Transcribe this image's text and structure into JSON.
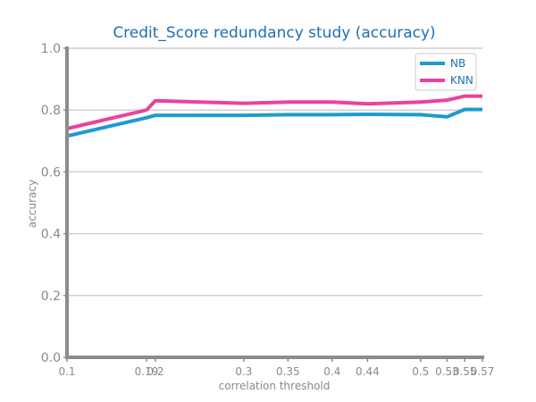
{
  "chart_data": {
    "type": "line",
    "title": "Credit_Score redundancy study (accuracy)",
    "xlabel": "correlation threshold",
    "ylabel": "accuracy",
    "xlim": [
      0.1,
      0.57
    ],
    "ylim": [
      0.0,
      1.0
    ],
    "grid": true,
    "legend_position": "top-right",
    "xticks": [
      {
        "value": 0.1,
        "label": "0.1"
      },
      {
        "value": 0.19,
        "label": "0.19"
      },
      {
        "value": 0.2,
        "label": "0.2"
      },
      {
        "value": 0.3,
        "label": "0.3"
      },
      {
        "value": 0.35,
        "label": "0.35"
      },
      {
        "value": 0.4,
        "label": "0.4"
      },
      {
        "value": 0.44,
        "label": "0.44"
      },
      {
        "value": 0.5,
        "label": "0.5"
      },
      {
        "value": 0.53,
        "label": "0.53"
      },
      {
        "value": 0.55,
        "label": "0.55"
      },
      {
        "value": 0.57,
        "label": "0.57"
      }
    ],
    "yticks": [
      {
        "value": 0.0,
        "label": "0.0"
      },
      {
        "value": 0.2,
        "label": "0.2"
      },
      {
        "value": 0.4,
        "label": "0.4"
      },
      {
        "value": 0.6,
        "label": "0.6"
      },
      {
        "value": 0.8,
        "label": "0.8"
      },
      {
        "value": 1.0,
        "label": "1.0"
      }
    ],
    "x": [
      0.1,
      0.19,
      0.2,
      0.3,
      0.35,
      0.4,
      0.44,
      0.5,
      0.53,
      0.55,
      0.57
    ],
    "series": [
      {
        "name": "NB",
        "color": "#1f9ad1",
        "values": [
          0.716,
          0.775,
          0.783,
          0.783,
          0.785,
          0.785,
          0.786,
          0.785,
          0.778,
          0.802,
          0.802
        ]
      },
      {
        "name": "KNN",
        "color": "#e8449a",
        "values": [
          0.74,
          0.8,
          0.83,
          0.822,
          0.826,
          0.826,
          0.82,
          0.826,
          0.832,
          0.845,
          0.845
        ]
      }
    ]
  }
}
